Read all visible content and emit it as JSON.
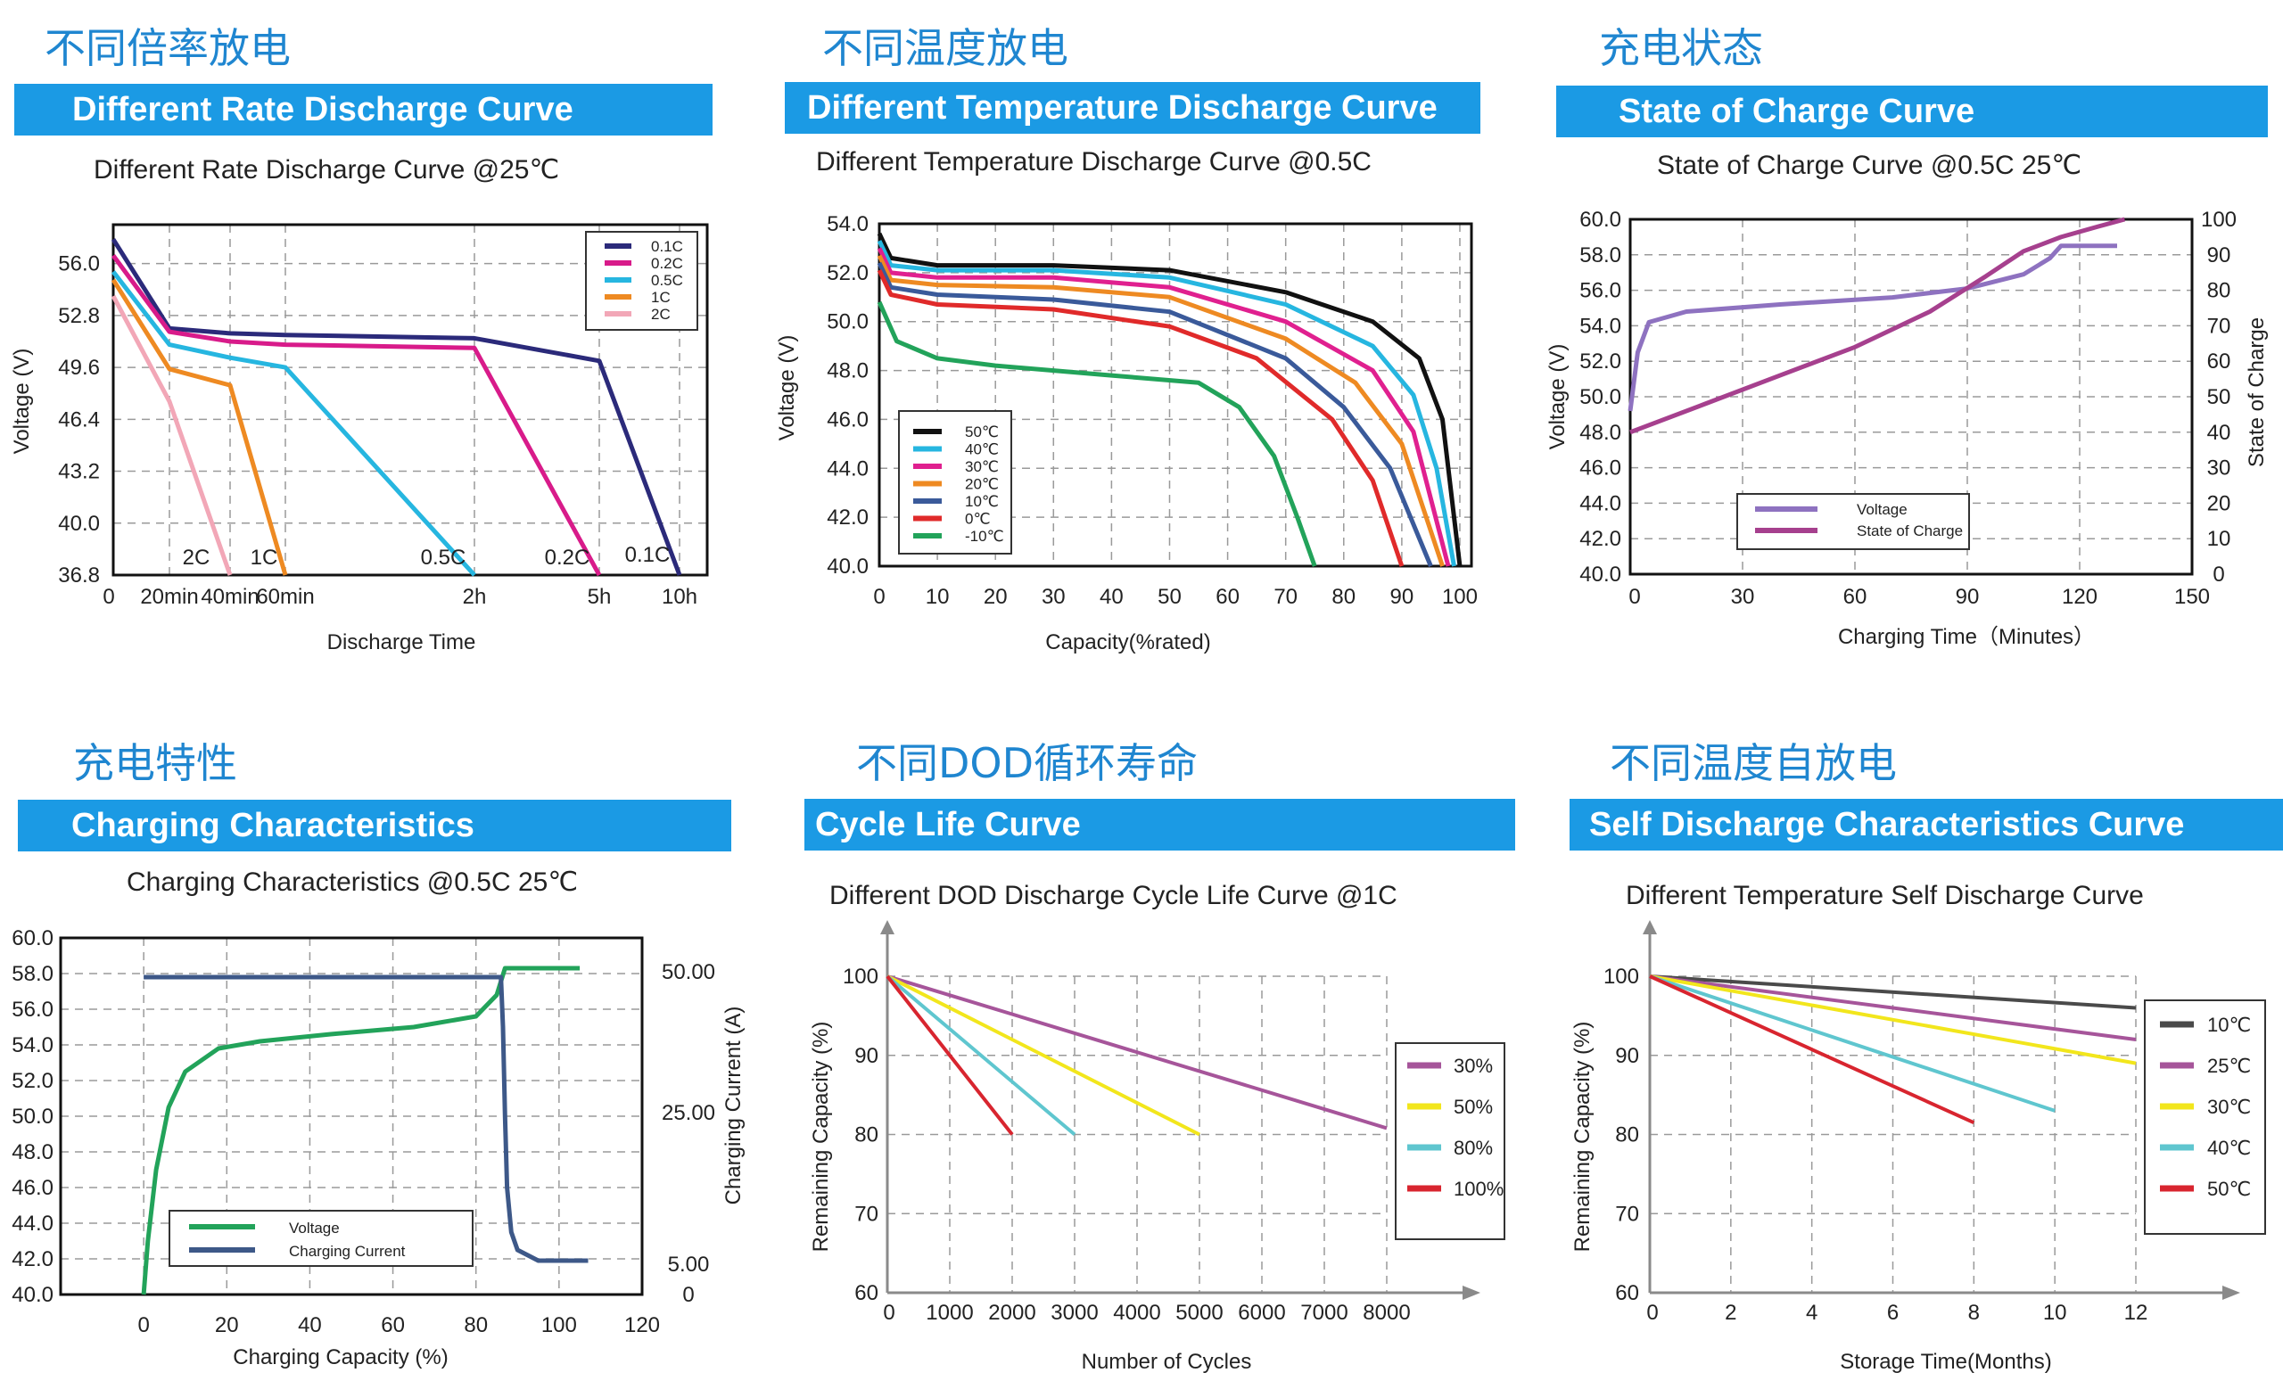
{
  "panels": [
    {
      "cn_title": "不同倍率放电",
      "banner": "Different Rate Discharge Curve",
      "subtitle": "Different Rate Discharge Curve @25℃"
    },
    {
      "cn_title": "不同温度放电",
      "banner": "Different Temperature Discharge Curve",
      "subtitle": "Different Temperature Discharge Curve @0.5C"
    },
    {
      "cn_title": "充电状态",
      "banner": "State of Charge Curve",
      "subtitle": "State of Charge Curve @0.5C 25℃"
    },
    {
      "cn_title": "充电特性",
      "banner": "Charging Characteristics",
      "subtitle": "Charging Characteristics @0.5C 25℃"
    },
    {
      "cn_title": "不同DOD循环寿命",
      "banner": "Cycle Life Curve",
      "subtitle": "Different DOD Discharge Cycle Life Curve @1C"
    },
    {
      "cn_title": "不同温度自放电",
      "banner": "Self Discharge Characteristics Curve",
      "subtitle": "Different Temperature Self Discharge Curve"
    }
  ],
  "chart_data": [
    {
      "type": "line",
      "xlabel": "Discharge Time",
      "ylabel": "Voltage (V)",
      "ylim": [
        36.8,
        58.4
      ],
      "y_ticks": [
        "56.0",
        "52.8",
        "49.6",
        "46.4",
        "43.2",
        "40.0",
        "36.8"
      ],
      "x_ticks": [
        "0",
        "20min",
        "40min",
        "60min",
        "2h",
        "5h",
        "10h"
      ],
      "grid": true,
      "legend_position": "top-right",
      "curve_labels": [
        "2C",
        "1C",
        "0.5C",
        "0.2C",
        "0.1C"
      ],
      "series": [
        {
          "name": "0.1C",
          "color": "#2b2a7a",
          "points": [
            [
              "0",
              57.5
            ],
            [
              "20min",
              52.0
            ],
            [
              "40min",
              51.7
            ],
            [
              "60min",
              51.6
            ],
            [
              "2h",
              51.4
            ],
            [
              "5h",
              50.0
            ],
            [
              "10h",
              36.8
            ]
          ]
        },
        {
          "name": "0.2C",
          "color": "#d81b8a",
          "points": [
            [
              "0",
              56.5
            ],
            [
              "20min",
              51.8
            ],
            [
              "40min",
              51.2
            ],
            [
              "60min",
              51.0
            ],
            [
              "2h",
              50.8
            ],
            [
              "5h",
              36.8
            ]
          ]
        },
        {
          "name": "0.5C",
          "color": "#26b6e0",
          "points": [
            [
              "0",
              55.5
            ],
            [
              "20min",
              51.0
            ],
            [
              "40min",
              50.2
            ],
            [
              "60min",
              49.6
            ],
            [
              "2h",
              36.8
            ]
          ]
        },
        {
          "name": "1C",
          "color": "#ee8a22",
          "points": [
            [
              "0",
              55.0
            ],
            [
              "20min",
              49.5
            ],
            [
              "40min",
              48.5
            ],
            [
              "60min",
              36.8
            ]
          ]
        },
        {
          "name": "2C",
          "color": "#f2a7b7",
          "points": [
            [
              "0",
              54.0
            ],
            [
              "20min",
              47.5
            ],
            [
              "40min",
              36.8
            ]
          ]
        }
      ]
    },
    {
      "type": "line",
      "xlabel": "Capacity(%rated)",
      "ylabel": "Voltage (V)",
      "xlim": [
        0,
        102
      ],
      "ylim": [
        40.0,
        54.0
      ],
      "x_ticks": [
        0,
        10,
        20,
        30,
        40,
        50,
        60,
        70,
        80,
        90,
        100
      ],
      "y_ticks": [
        "54.0",
        "52.0",
        "50.0",
        "48.0",
        "46.0",
        "44.0",
        "42.0",
        "40.0"
      ],
      "grid": true,
      "legend_position": "bottom-left",
      "series": [
        {
          "name": "50℃",
          "color": "#111111",
          "points": [
            [
              0,
              53.6
            ],
            [
              2,
              52.6
            ],
            [
              10,
              52.3
            ],
            [
              30,
              52.3
            ],
            [
              50,
              52.1
            ],
            [
              70,
              51.2
            ],
            [
              85,
              50.0
            ],
            [
              93,
              48.5
            ],
            [
              97,
              46.0
            ],
            [
              100,
              40.0
            ]
          ]
        },
        {
          "name": "40℃",
          "color": "#26b6e0",
          "points": [
            [
              0,
              53.3
            ],
            [
              2,
              52.3
            ],
            [
              10,
              52.1
            ],
            [
              30,
              52.1
            ],
            [
              50,
              51.8
            ],
            [
              70,
              50.7
            ],
            [
              85,
              49.0
            ],
            [
              92,
              47.0
            ],
            [
              96,
              44.0
            ],
            [
              99,
              40.0
            ]
          ]
        },
        {
          "name": "30℃",
          "color": "#e0208f",
          "points": [
            [
              0,
              53.0
            ],
            [
              2,
              52.0
            ],
            [
              10,
              51.8
            ],
            [
              30,
              51.8
            ],
            [
              50,
              51.4
            ],
            [
              70,
              50.0
            ],
            [
              85,
              48.0
            ],
            [
              92,
              45.5
            ],
            [
              98,
              40.0
            ]
          ]
        },
        {
          "name": "20℃",
          "color": "#ee8a22",
          "points": [
            [
              0,
              52.7
            ],
            [
              2,
              51.7
            ],
            [
              10,
              51.5
            ],
            [
              30,
              51.4
            ],
            [
              50,
              51.0
            ],
            [
              70,
              49.3
            ],
            [
              82,
              47.5
            ],
            [
              90,
              45.0
            ],
            [
              97,
              40.0
            ]
          ]
        },
        {
          "name": "10℃",
          "color": "#3a5a9a",
          "points": [
            [
              0,
              52.4
            ],
            [
              2,
              51.4
            ],
            [
              10,
              51.1
            ],
            [
              30,
              50.9
            ],
            [
              50,
              50.4
            ],
            [
              70,
              48.5
            ],
            [
              80,
              46.5
            ],
            [
              88,
              44.0
            ],
            [
              95,
              40.0
            ]
          ]
        },
        {
          "name": "0℃",
          "color": "#e02a2a",
          "points": [
            [
              0,
              52.1
            ],
            [
              2,
              51.1
            ],
            [
              10,
              50.7
            ],
            [
              30,
              50.5
            ],
            [
              50,
              49.8
            ],
            [
              65,
              48.5
            ],
            [
              78,
              46.0
            ],
            [
              85,
              43.5
            ],
            [
              90,
              40.0
            ]
          ]
        },
        {
          "name": "-10℃",
          "color": "#22a35a",
          "points": [
            [
              0,
              50.8
            ],
            [
              3,
              49.2
            ],
            [
              10,
              48.5
            ],
            [
              20,
              48.2
            ],
            [
              40,
              47.8
            ],
            [
              55,
              47.5
            ],
            [
              62,
              46.5
            ],
            [
              68,
              44.5
            ],
            [
              72,
              42.0
            ],
            [
              75,
              40.0
            ]
          ]
        }
      ]
    },
    {
      "type": "line",
      "xlabel": "Charging Time（Minutes）",
      "ylabel": "Voltage (V)",
      "ylabel_right": "State of Charge",
      "xlim": [
        0,
        150
      ],
      "ylim": [
        40.0,
        60.0
      ],
      "ylim_right": [
        0,
        100
      ],
      "x_ticks": [
        0,
        30,
        60,
        90,
        120,
        150
      ],
      "y_ticks": [
        "60.0",
        "58.0",
        "56.0",
        "54.0",
        "52.0",
        "50.0",
        "48.0",
        "46.0",
        "44.0",
        "42.0",
        "40.0"
      ],
      "y_ticks_right": [
        100,
        90,
        80,
        70,
        60,
        50,
        40,
        30,
        20,
        10,
        0
      ],
      "grid": true,
      "legend_position": "bottom-center",
      "series": [
        {
          "name": "Voltage",
          "color": "#8e72c0",
          "axis": "left",
          "points": [
            [
              0,
              49.2
            ],
            [
              2,
              52.5
            ],
            [
              5,
              54.2
            ],
            [
              15,
              54.8
            ],
            [
              40,
              55.2
            ],
            [
              70,
              55.6
            ],
            [
              90,
              56.1
            ],
            [
              105,
              56.9
            ],
            [
              112,
              57.8
            ],
            [
              115,
              58.5
            ],
            [
              130,
              58.5
            ]
          ]
        },
        {
          "name": "State of Charge",
          "color": "#a6408e",
          "axis": "right",
          "points": [
            [
              0,
              40
            ],
            [
              20,
              48
            ],
            [
              40,
              56
            ],
            [
              60,
              64
            ],
            [
              80,
              74
            ],
            [
              95,
              84
            ],
            [
              105,
              91
            ],
            [
              115,
              95
            ],
            [
              125,
              98
            ],
            [
              132,
              100
            ]
          ]
        }
      ]
    },
    {
      "type": "line",
      "xlabel": "Charging Capacity (%)",
      "ylabel": "Voltage (V)",
      "ylabel_right": "Charging Current (A)",
      "xlim": [
        -20,
        120
      ],
      "ylim": [
        40.0,
        60.0
      ],
      "x_ticks": [
        0,
        20,
        40,
        60,
        80,
        100,
        120
      ],
      "y_ticks": [
        "60.0",
        "58.0",
        "56.0",
        "54.0",
        "52.0",
        "50.0",
        "48.0",
        "46.0",
        "44.0",
        "42.0",
        "40.0"
      ],
      "y_ticks_right": [
        "50.00",
        "25.00",
        "5.00",
        "0"
      ],
      "grid": true,
      "legend_position": "bottom-center",
      "series": [
        {
          "name": "Voltage",
          "color": "#22a35a",
          "points": [
            [
              0,
              40.0
            ],
            [
              1,
              43.0
            ],
            [
              3,
              47.0
            ],
            [
              6,
              50.5
            ],
            [
              10,
              52.5
            ],
            [
              18,
              53.8
            ],
            [
              28,
              54.2
            ],
            [
              45,
              54.6
            ],
            [
              65,
              55.0
            ],
            [
              80,
              55.6
            ],
            [
              85,
              56.8
            ],
            [
              87,
              58.3
            ],
            [
              105,
              58.3
            ]
          ]
        },
        {
          "name": "Charging Current",
          "color": "#3d5888",
          "points": [
            [
              0,
              57.8
            ],
            [
              86,
              57.8
            ],
            [
              86.5,
              55.0
            ],
            [
              87,
              50.0
            ],
            [
              87.5,
              46.0
            ],
            [
              88.5,
              43.5
            ],
            [
              90,
              42.5
            ],
            [
              95,
              41.9
            ],
            [
              107,
              41.9
            ]
          ]
        }
      ]
    },
    {
      "type": "line",
      "xlabel": "Number of Cycles",
      "ylabel": "Remaining Capacity (%)",
      "xlim": [
        0,
        8500
      ],
      "ylim": [
        60,
        100
      ],
      "x_ticks": [
        0,
        1000,
        2000,
        3000,
        4000,
        5000,
        6000,
        7000,
        8000
      ],
      "y_ticks": [
        100,
        90,
        80,
        70,
        60
      ],
      "grid": true,
      "legend_position": "right",
      "series": [
        {
          "name": "30%",
          "color": "#a6559a",
          "points": [
            [
              0,
              100
            ],
            [
              8000,
              80.8
            ]
          ]
        },
        {
          "name": "50%",
          "color": "#f2e61c",
          "points": [
            [
              0,
              100
            ],
            [
              5000,
              80
            ]
          ]
        },
        {
          "name": "80%",
          "color": "#5fc6cf",
          "points": [
            [
              0,
              100
            ],
            [
              3000,
              80
            ]
          ]
        },
        {
          "name": "100%",
          "color": "#d8252f",
          "points": [
            [
              0,
              100
            ],
            [
              2000,
              80
            ]
          ]
        }
      ]
    },
    {
      "type": "line",
      "xlabel": "Storage Time(Months)",
      "ylabel": "Remaining Capacity (%)",
      "xlim": [
        0,
        13.5
      ],
      "ylim": [
        60,
        100
      ],
      "x_ticks": [
        0,
        2,
        4,
        6,
        8,
        10,
        12
      ],
      "y_ticks": [
        100,
        90,
        80,
        70,
        60
      ],
      "grid": true,
      "legend_position": "right",
      "series": [
        {
          "name": "10℃",
          "color": "#4a4a4a",
          "points": [
            [
              0,
              100
            ],
            [
              12,
              96
            ]
          ]
        },
        {
          "name": "25℃",
          "color": "#a6559a",
          "points": [
            [
              0,
              100
            ],
            [
              12,
              92
            ]
          ]
        },
        {
          "name": "30℃",
          "color": "#f2e61c",
          "points": [
            [
              0,
              100
            ],
            [
              12,
              89
            ]
          ]
        },
        {
          "name": "40℃",
          "color": "#5fc6cf",
          "points": [
            [
              0,
              100
            ],
            [
              10,
              83
            ]
          ]
        },
        {
          "name": "50℃",
          "color": "#d8252f",
          "points": [
            [
              0,
              100
            ],
            [
              8,
              81.5
            ]
          ]
        }
      ]
    }
  ]
}
